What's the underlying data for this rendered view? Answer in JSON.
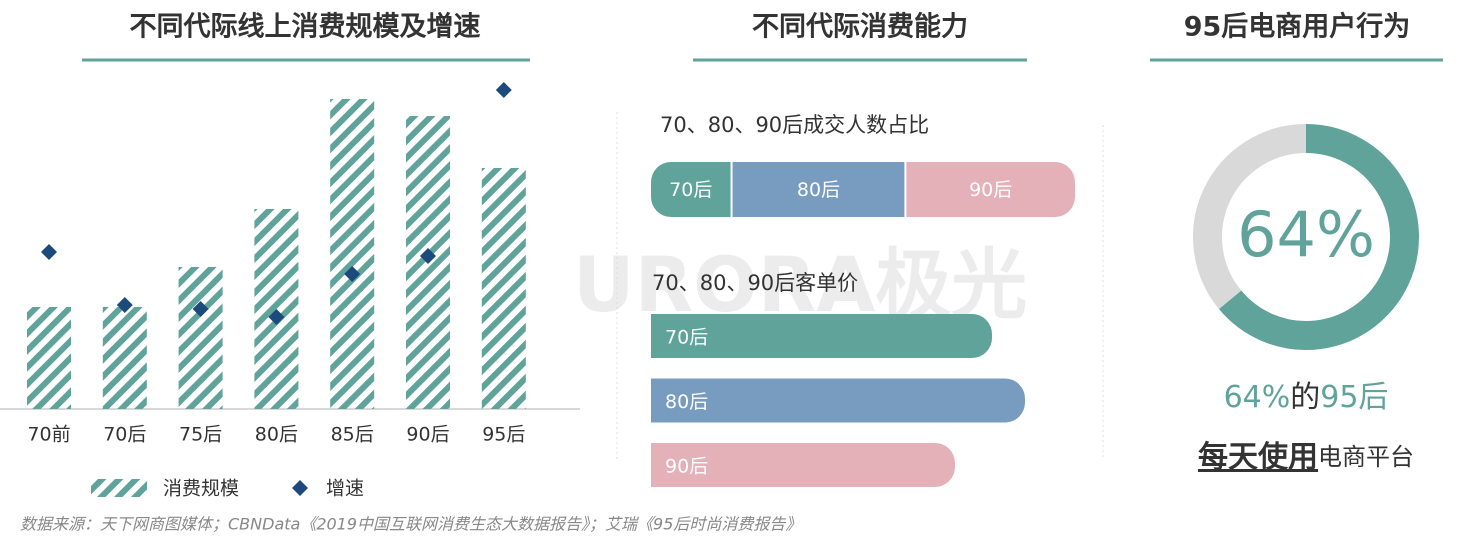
{
  "chart_data": [
    {
      "type": "bar",
      "title": "不同代际线上消费规模及增速",
      "categories": [
        "70前",
        "70后",
        "75后",
        "80后",
        "85后",
        "90后",
        "95后"
      ],
      "series": [
        {
          "name": "消费规模",
          "type": "bar",
          "color": "#5fa39b",
          "values": [
            102,
            102,
            142,
            200,
            310,
            293,
            241
          ]
        },
        {
          "name": "增速",
          "type": "scatter",
          "color": "#1d4a7c",
          "values": [
            157,
            104,
            100,
            92,
            135,
            153,
            319
          ]
        }
      ],
      "ylim": [
        0,
        320
      ]
    },
    {
      "type": "stacked_bar",
      "title": "不同代际消费能力",
      "subtitle": "70、80、90后成交人数占比",
      "series": [
        {
          "name": "70后",
          "color": "#5fa39b",
          "values": [
            19
          ]
        },
        {
          "name": "80后",
          "color": "#789cbf",
          "values": [
            41
          ]
        },
        {
          "name": "90后",
          "color": "#e5b1b9",
          "values": [
            40
          ]
        }
      ],
      "xlim": [
        0,
        100
      ]
    },
    {
      "type": "hbar",
      "subtitle": "70、80、90后客单价",
      "categories": [
        "70后",
        "80后",
        "90后"
      ],
      "values": [
        341,
        374,
        304
      ],
      "colors": [
        "#5fa39b",
        "#789cbf",
        "#e5b1b9"
      ],
      "xlim": [
        0,
        424
      ]
    },
    {
      "type": "pie",
      "title": "95后电商用户行为",
      "values": [
        64,
        36
      ],
      "value_labels": [
        "64%",
        null
      ],
      "colors": [
        "#5fa39b",
        "#d9d9d9"
      ],
      "caption": [
        "64%",
        "的",
        "95后"
      ],
      "caption2": [
        "每天使用",
        "电商平台"
      ]
    }
  ],
  "watermark": "URORA极光",
  "source": "数据来源：天下网商图媒体；CBNData《2019中国互联网消费生态大数据报告》；艾瑞《95后时尚消费报告》"
}
